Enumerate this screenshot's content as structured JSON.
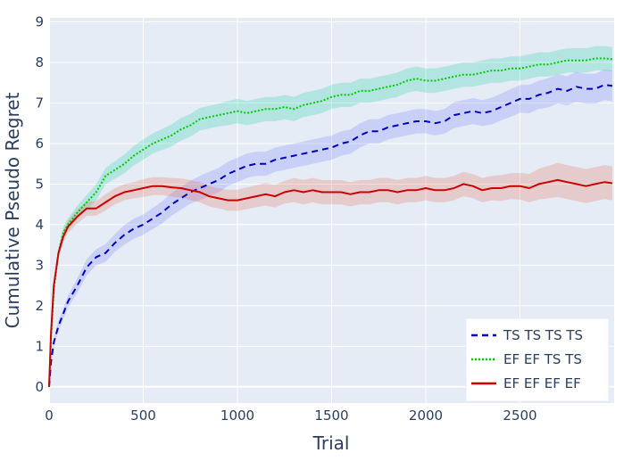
{
  "chart_data": {
    "type": "line",
    "title": "",
    "xlabel": "Trial",
    "ylabel": "Cumulative Pseudo Regret",
    "xlim": [
      0,
      3000
    ],
    "ylim": [
      -0.4,
      9.1
    ],
    "xticks": [
      0,
      500,
      1000,
      1500,
      2000,
      2500
    ],
    "yticks": [
      0,
      1,
      2,
      3,
      4,
      5,
      6,
      7,
      8,
      9
    ],
    "grid": true,
    "legend_position": "bottom-right",
    "plot_background": "#e5ecf6",
    "series": [
      {
        "name": "TS TS TS TS",
        "color": "#0000bb",
        "band_color": "#636efa",
        "dash": "dash",
        "x": [
          0,
          10,
          25,
          50,
          100,
          150,
          200,
          250,
          300,
          350,
          400,
          450,
          500,
          550,
          600,
          650,
          700,
          750,
          800,
          850,
          900,
          950,
          1000,
          1050,
          1100,
          1150,
          1200,
          1250,
          1300,
          1350,
          1400,
          1450,
          1500,
          1550,
          1600,
          1650,
          1700,
          1750,
          1800,
          1850,
          1900,
          1950,
          2000,
          2050,
          2100,
          2150,
          2200,
          2250,
          2300,
          2350,
          2400,
          2450,
          2500,
          2550,
          2600,
          2650,
          2700,
          2750,
          2800,
          2850,
          2900,
          2950,
          2990
        ],
        "y": [
          0,
          0.6,
          1.1,
          1.5,
          2.1,
          2.5,
          2.95,
          3.2,
          3.3,
          3.55,
          3.75,
          3.9,
          4.0,
          4.15,
          4.3,
          4.5,
          4.65,
          4.8,
          4.9,
          5.0,
          5.1,
          5.25,
          5.35,
          5.45,
          5.5,
          5.5,
          5.6,
          5.65,
          5.7,
          5.75,
          5.8,
          5.85,
          5.9,
          6.0,
          6.05,
          6.2,
          6.3,
          6.3,
          6.4,
          6.45,
          6.5,
          6.55,
          6.55,
          6.5,
          6.55,
          6.7,
          6.75,
          6.8,
          6.75,
          6.8,
          6.9,
          7.0,
          7.1,
          7.1,
          7.2,
          7.25,
          7.35,
          7.3,
          7.4,
          7.35,
          7.35,
          7.45,
          7.42
        ],
        "band_halfwidth": [
          0,
          0.05,
          0.1,
          0.12,
          0.15,
          0.18,
          0.2,
          0.2,
          0.22,
          0.22,
          0.24,
          0.25,
          0.25,
          0.26,
          0.27,
          0.28,
          0.28,
          0.28,
          0.3,
          0.3,
          0.3,
          0.3,
          0.3,
          0.3,
          0.3,
          0.3,
          0.3,
          0.3,
          0.3,
          0.3,
          0.3,
          0.3,
          0.3,
          0.3,
          0.3,
          0.3,
          0.3,
          0.3,
          0.3,
          0.3,
          0.3,
          0.3,
          0.3,
          0.3,
          0.3,
          0.32,
          0.32,
          0.32,
          0.32,
          0.33,
          0.33,
          0.34,
          0.34,
          0.35,
          0.35,
          0.36,
          0.36,
          0.36,
          0.37,
          0.37,
          0.37,
          0.38,
          0.38
        ]
      },
      {
        "name": "EF EF TS TS",
        "color": "#00cc00",
        "band_color": "#00cc96",
        "dash": "dot",
        "x": [
          0,
          10,
          25,
          50,
          75,
          100,
          150,
          200,
          250,
          300,
          350,
          400,
          450,
          500,
          550,
          600,
          650,
          700,
          750,
          800,
          850,
          900,
          950,
          1000,
          1050,
          1100,
          1150,
          1200,
          1250,
          1300,
          1350,
          1400,
          1450,
          1500,
          1550,
          1600,
          1650,
          1700,
          1750,
          1800,
          1850,
          1900,
          1950,
          2000,
          2050,
          2100,
          2150,
          2200,
          2250,
          2300,
          2350,
          2400,
          2450,
          2500,
          2550,
          2600,
          2650,
          2700,
          2750,
          2800,
          2850,
          2900,
          2950,
          2990
        ],
        "y": [
          0,
          1.2,
          2.4,
          3.3,
          3.8,
          4.0,
          4.3,
          4.55,
          4.8,
          5.2,
          5.35,
          5.5,
          5.7,
          5.85,
          6.0,
          6.1,
          6.2,
          6.35,
          6.45,
          6.6,
          6.65,
          6.7,
          6.75,
          6.8,
          6.75,
          6.8,
          6.85,
          6.85,
          6.9,
          6.85,
          6.95,
          7.0,
          7.05,
          7.15,
          7.2,
          7.2,
          7.3,
          7.3,
          7.35,
          7.4,
          7.45,
          7.55,
          7.6,
          7.55,
          7.55,
          7.6,
          7.65,
          7.7,
          7.7,
          7.75,
          7.8,
          7.8,
          7.85,
          7.85,
          7.9,
          7.95,
          7.95,
          8.0,
          8.05,
          8.05,
          8.05,
          8.1,
          8.1,
          8.08
        ],
        "band_halfwidth": [
          0,
          0.05,
          0.1,
          0.12,
          0.15,
          0.15,
          0.17,
          0.18,
          0.2,
          0.2,
          0.22,
          0.23,
          0.24,
          0.25,
          0.25,
          0.26,
          0.27,
          0.28,
          0.28,
          0.28,
          0.28,
          0.28,
          0.3,
          0.3,
          0.3,
          0.3,
          0.3,
          0.3,
          0.3,
          0.3,
          0.3,
          0.3,
          0.3,
          0.3,
          0.3,
          0.3,
          0.3,
          0.3,
          0.3,
          0.3,
          0.3,
          0.3,
          0.3,
          0.3,
          0.3,
          0.3,
          0.3,
          0.3,
          0.3,
          0.3,
          0.3,
          0.3,
          0.3,
          0.3,
          0.3,
          0.3,
          0.3,
          0.3,
          0.3,
          0.3,
          0.3,
          0.3,
          0.3,
          0.3
        ]
      },
      {
        "name": "EF EF EF EF",
        "color": "#cc0000",
        "band_color": "#ef553b",
        "dash": "solid",
        "x": [
          0,
          10,
          25,
          50,
          75,
          100,
          150,
          200,
          250,
          300,
          350,
          400,
          450,
          500,
          550,
          600,
          650,
          700,
          750,
          800,
          850,
          900,
          950,
          1000,
          1050,
          1100,
          1150,
          1200,
          1250,
          1300,
          1350,
          1400,
          1450,
          1500,
          1550,
          1600,
          1650,
          1700,
          1750,
          1800,
          1850,
          1900,
          1950,
          2000,
          2050,
          2100,
          2150,
          2200,
          2250,
          2300,
          2350,
          2400,
          2450,
          2500,
          2550,
          2600,
          2650,
          2700,
          2750,
          2800,
          2850,
          2900,
          2950,
          2990
        ],
        "y": [
          0,
          1.3,
          2.5,
          3.3,
          3.7,
          3.95,
          4.2,
          4.4,
          4.4,
          4.55,
          4.7,
          4.8,
          4.85,
          4.9,
          4.95,
          4.95,
          4.92,
          4.9,
          4.85,
          4.8,
          4.7,
          4.65,
          4.6,
          4.6,
          4.65,
          4.7,
          4.75,
          4.7,
          4.8,
          4.85,
          4.8,
          4.85,
          4.8,
          4.8,
          4.8,
          4.75,
          4.8,
          4.8,
          4.85,
          4.85,
          4.8,
          4.85,
          4.85,
          4.9,
          4.85,
          4.85,
          4.9,
          5.0,
          4.95,
          4.85,
          4.9,
          4.9,
          4.95,
          4.95,
          4.9,
          5.0,
          5.05,
          5.1,
          5.05,
          5.0,
          4.95,
          5.0,
          5.05,
          5.02
        ],
        "band_halfwidth": [
          0,
          0.05,
          0.1,
          0.12,
          0.15,
          0.15,
          0.17,
          0.18,
          0.18,
          0.2,
          0.2,
          0.2,
          0.2,
          0.22,
          0.22,
          0.22,
          0.23,
          0.24,
          0.25,
          0.25,
          0.25,
          0.25,
          0.26,
          0.26,
          0.27,
          0.27,
          0.28,
          0.28,
          0.28,
          0.3,
          0.3,
          0.3,
          0.3,
          0.3,
          0.3,
          0.3,
          0.3,
          0.3,
          0.3,
          0.3,
          0.3,
          0.3,
          0.3,
          0.3,
          0.3,
          0.3,
          0.3,
          0.3,
          0.3,
          0.3,
          0.3,
          0.32,
          0.32,
          0.33,
          0.35,
          0.38,
          0.4,
          0.42,
          0.42,
          0.42,
          0.42,
          0.42,
          0.42,
          0.42
        ]
      }
    ]
  }
}
